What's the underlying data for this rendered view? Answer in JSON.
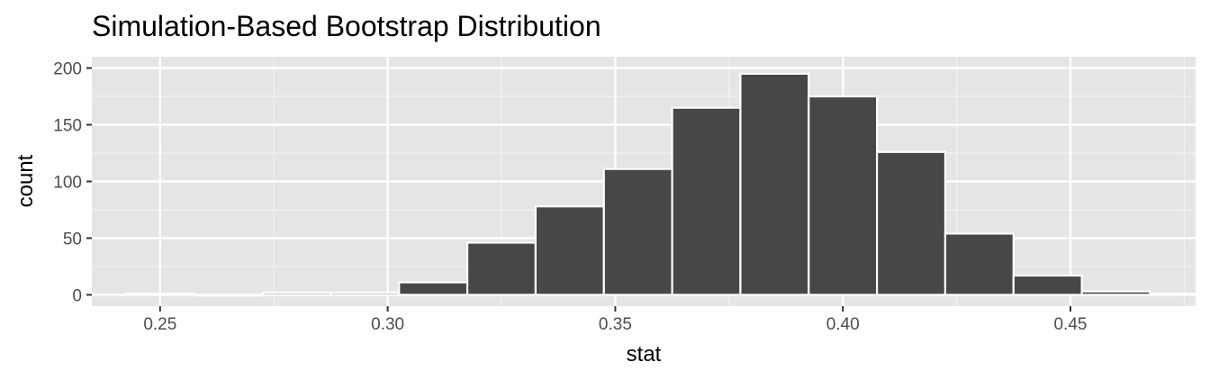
{
  "chart_data": {
    "type": "bar",
    "title": "Simulation-Based Bootstrap Distribution",
    "xlabel": "stat",
    "ylabel": "count",
    "xlim": [
      0.235,
      0.4775
    ],
    "ylim": [
      -10,
      210
    ],
    "x_ticks": [
      "0.25",
      "0.30",
      "0.35",
      "0.40",
      "0.45"
    ],
    "x_tick_values": [
      0.25,
      0.3,
      0.35,
      0.4,
      0.45
    ],
    "y_ticks": [
      "0",
      "50",
      "100",
      "150",
      "200"
    ],
    "y_tick_values": [
      0,
      50,
      100,
      150,
      200
    ],
    "grid": true,
    "bar_color": "#474747",
    "bar_outline": "#ffffff",
    "panel_color": "#e5e5e5",
    "bins": [
      {
        "x0": 0.2425,
        "x1": 0.2575,
        "count": 1
      },
      {
        "x0": 0.2575,
        "x1": 0.2725,
        "count": 0
      },
      {
        "x0": 0.2725,
        "x1": 0.2875,
        "count": 2
      },
      {
        "x0": 0.2875,
        "x1": 0.3025,
        "count": 2
      },
      {
        "x0": 0.3025,
        "x1": 0.3175,
        "count": 11
      },
      {
        "x0": 0.3175,
        "x1": 0.3325,
        "count": 46
      },
      {
        "x0": 0.3325,
        "x1": 0.3475,
        "count": 78
      },
      {
        "x0": 0.3475,
        "x1": 0.3625,
        "count": 111
      },
      {
        "x0": 0.3625,
        "x1": 0.3775,
        "count": 165
      },
      {
        "x0": 0.3775,
        "x1": 0.3925,
        "count": 195
      },
      {
        "x0": 0.3925,
        "x1": 0.4075,
        "count": 175
      },
      {
        "x0": 0.4075,
        "x1": 0.4225,
        "count": 126
      },
      {
        "x0": 0.4225,
        "x1": 0.4375,
        "count": 54
      },
      {
        "x0": 0.4375,
        "x1": 0.4525,
        "count": 17
      },
      {
        "x0": 0.4525,
        "x1": 0.4675,
        "count": 3
      },
      {
        "x0": 0.4675,
        "x1": 0.4825,
        "count": 1
      }
    ]
  }
}
